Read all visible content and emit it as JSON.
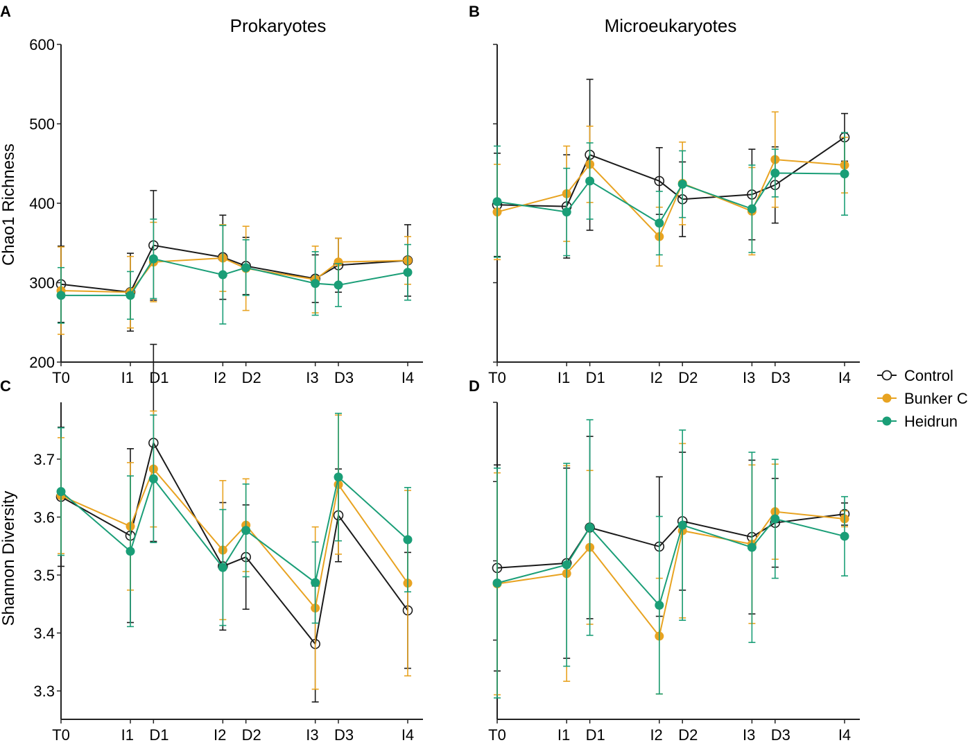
{
  "colors": {
    "Control": "#1a1a1a",
    "Bunker C": "#e8a321",
    "Heidrun": "#1a9e77"
  },
  "legend": {
    "entries": [
      "Control",
      "Bunker C",
      "Heidrun"
    ],
    "placement": "right"
  },
  "chart_data": [
    {
      "panel_letter": "A",
      "type": "line",
      "title": "Prokaryotes",
      "ylabel": "Chao1 Richness",
      "ylim": [
        200,
        600
      ],
      "yticks": [
        "200",
        "300",
        "400",
        "500",
        "600"
      ],
      "ytick_values": [
        200,
        300,
        400,
        500,
        600
      ],
      "x_labels": [
        "T0",
        "I1",
        "D1",
        "I2",
        "D2",
        "I3",
        "D3",
        "I4"
      ],
      "x": [
        0,
        3,
        4,
        7,
        8,
        11,
        12,
        15
      ],
      "series": [
        {
          "name": "Control",
          "values": [
            298,
            288,
            347,
            332,
            321,
            305,
            322,
            328
          ],
          "error": [
            48,
            49,
            69,
            53,
            36,
            30,
            34,
            45
          ]
        },
        {
          "name": "Bunker C",
          "values": [
            290,
            288,
            326,
            331,
            318,
            304,
            326,
            328
          ],
          "error": [
            55,
            45,
            50,
            42,
            53,
            42,
            30,
            30
          ]
        },
        {
          "name": "Heidrun",
          "values": [
            284,
            284,
            330,
            310,
            319,
            299,
            297,
            313
          ],
          "error": [
            35,
            30,
            50,
            62,
            35,
            40,
            27,
            35
          ]
        }
      ]
    },
    {
      "panel_letter": "B",
      "type": "line",
      "title": "Microeukaryotes",
      "ylabel": "",
      "ylim": [
        200,
        600
      ],
      "yticks": [],
      "ytick_values": [
        200,
        300,
        400,
        500,
        600
      ],
      "x_labels": [
        "T0",
        "I1",
        "D1",
        "I2",
        "D2",
        "I3",
        "D3",
        "I4"
      ],
      "x": [
        0,
        3,
        4,
        7,
        8,
        11,
        12,
        15
      ],
      "series": [
        {
          "name": "Control",
          "values": [
            398,
            396,
            461,
            428,
            405,
            411,
            423,
            483
          ],
          "error": [
            65,
            65,
            95,
            42,
            47,
            57,
            48,
            30
          ]
        },
        {
          "name": "Bunker C",
          "values": [
            389,
            412,
            449,
            358,
            425,
            390,
            455,
            448
          ],
          "error": [
            60,
            60,
            48,
            37,
            52,
            55,
            60,
            35
          ]
        },
        {
          "name": "Heidrun",
          "values": [
            402,
            389,
            428,
            375,
            424,
            393,
            438,
            437
          ],
          "error": [
            70,
            55,
            48,
            40,
            42,
            55,
            30,
            52
          ]
        }
      ]
    },
    {
      "panel_letter": "C",
      "type": "line",
      "title": "",
      "ylabel": "Shannon Diversity",
      "ylim": [
        3.251,
        3.798
      ],
      "yticks": [
        "3.3",
        "3.4",
        "3.5",
        "3.6",
        "3.7"
      ],
      "ytick_values": [
        3.3,
        3.4,
        3.5,
        3.6,
        3.7
      ],
      "x_labels": [
        "T0",
        "I1",
        "D1",
        "I2",
        "D2",
        "I3",
        "D3",
        "I4"
      ],
      "x": [
        0,
        3,
        4,
        7,
        8,
        11,
        12,
        15
      ],
      "series": [
        {
          "name": "Control",
          "values": [
            3.635,
            3.568,
            3.728,
            3.515,
            3.531,
            3.381,
            3.603,
            3.439
          ],
          "error": [
            0.12,
            0.15,
            0.17,
            0.11,
            0.09,
            0.1,
            0.08,
            0.1
          ]
        },
        {
          "name": "Bunker C",
          "values": [
            3.637,
            3.584,
            3.683,
            3.543,
            3.586,
            3.443,
            3.656,
            3.486
          ],
          "error": [
            0.1,
            0.11,
            0.1,
            0.12,
            0.08,
            0.14,
            0.12,
            0.16
          ]
        },
        {
          "name": "Heidrun",
          "values": [
            3.644,
            3.541,
            3.666,
            3.513,
            3.577,
            3.487,
            3.669,
            3.561
          ],
          "error": [
            0.11,
            0.13,
            0.11,
            0.1,
            0.08,
            0.07,
            0.11,
            0.09
          ]
        }
      ]
    },
    {
      "panel_letter": "D",
      "type": "line",
      "title": "",
      "ylabel": "",
      "ylim": [
        0,
        4
      ],
      "yticks": [],
      "ytick_values": [
        1,
        2,
        3,
        4
      ],
      "x_labels": [
        "T0",
        "I1",
        "D1",
        "I2",
        "D2",
        "I3",
        "D3",
        "I4"
      ],
      "x": [
        0,
        3,
        4,
        7,
        8,
        11,
        12,
        15
      ],
      "series": [
        {
          "name": "Control",
          "values": [
            1.91,
            1.97,
            2.42,
            2.18,
            2.5,
            2.3,
            2.48,
            2.59
          ],
          "error": [
            1.3,
            1.2,
            1.15,
            0.88,
            0.87,
            0.97,
            0.56,
            0.14
          ]
        },
        {
          "name": "Bunker C",
          "values": [
            1.71,
            1.84,
            2.17,
            1.05,
            2.38,
            2.21,
            2.62,
            2.53
          ],
          "error": [
            1.4,
            1.36,
            0.97,
            0.73,
            1.1,
            1.0,
            0.6,
            0.1
          ]
        },
        {
          "name": "Heidrun",
          "values": [
            1.72,
            1.95,
            2.42,
            1.44,
            2.45,
            2.17,
            2.53,
            2.31
          ],
          "error": [
            1.45,
            1.28,
            1.36,
            1.12,
            1.2,
            1.2,
            0.75,
            0.5
          ]
        }
      ]
    }
  ]
}
